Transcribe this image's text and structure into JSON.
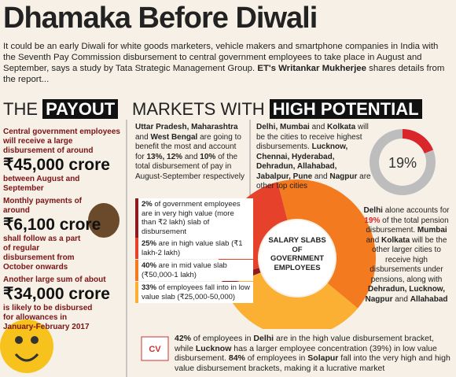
{
  "title": "Dhamaka Before Diwali",
  "intro": {
    "runs": [
      "It could be an early Diwali for white goods marketers, vehicle makers and smartphone companies in India with the Seventh Pay Commission disbursement to central government employees to take place in August and September, says a study by Tata Strategic Management Group. ",
      {
        "b": "ET's Writankar Mukherjee"
      },
      " shares details from the report..."
    ]
  },
  "headers": {
    "payout_pre": "THE",
    "payout": "PAYOUT",
    "markets_pre": "MARKETS WITH",
    "markets": "HIGH POTENTIAL"
  },
  "payout": [
    {
      "lead": "Central government employees will receive a large disbursement of around",
      "amount": "₹45,000 crore",
      "tail": "between August and September"
    },
    {
      "lead": "Monthly payments of around",
      "amount": "₹6,100 crore",
      "tail": "shall follow as a part of regular disbursement from October onwards"
    },
    {
      "lead": "Another large sum of about",
      "amount": "₹34,000 crore",
      "tail": "is likely to be disbursed for allowances in January-February 2017"
    }
  ],
  "markets": {
    "states": {
      "runs": [
        {
          "b": "Uttar Pradesh, Maharashtra"
        },
        " and ",
        {
          "b": "West Bengal"
        },
        " are going to benefit the most and account for ",
        {
          "b": "13%, 12%"
        },
        " and ",
        {
          "b": "10%"
        },
        " of the total disbursement of pay in August-September respectively"
      ]
    },
    "cities": {
      "runs": [
        {
          "b": "Delhi, Mumbai"
        },
        " and ",
        {
          "b": "Kolkata"
        },
        " will be the cities to receive highest disbursements. ",
        {
          "b": "Lucknow, Chennai, Hyderabad, Dehradun, Allahabad, Jabalpur, Pune"
        },
        " and ",
        {
          "b": "Nagpur"
        },
        " are other top cities"
      ]
    },
    "pension": {
      "value": 19,
      "label": "19%",
      "colors": [
        "#d9262b",
        "#bdbdbd"
      ],
      "runs": [
        {
          "b": "Delhi"
        },
        " alone accounts for ",
        {
          "r": "19%"
        },
        " of the total pension disbursement. ",
        {
          "b": "Mumbai"
        },
        " and ",
        {
          "b": "Kolkata"
        },
        " will be the other larger cities to receive high disbursements under pensions, along with ",
        {
          "b": "Dehradun, Lucknow, Nagpur"
        },
        " and ",
        {
          "b": "Allahabad"
        }
      ]
    },
    "slabs": {
      "label": "SALARY SLABS OF GOVERNMENT EMPLOYEES",
      "values": [
        2,
        25,
        40,
        33
      ],
      "colors": [
        "#8e1b1e",
        "#e5412b",
        "#f47a20",
        "#fbb034"
      ],
      "legend": [
        {
          "runs": [
            {
              "b": "2%"
            },
            " of government employees are in very high value (more than ₹2 lakh) slab of disbursement"
          ]
        },
        {
          "runs": [
            {
              "b": "25%"
            },
            " are in high value slab (₹1 lakh-2 lakh)"
          ]
        },
        {
          "runs": [
            {
              "b": "40%"
            },
            " are in mid value slab (₹50,000-1 lakh)"
          ]
        },
        {
          "runs": [
            {
              "b": "33%"
            },
            " of employees fall into in low value slab (₹25,000-50,000)"
          ]
        }
      ]
    },
    "bottom": {
      "runs": [
        {
          "b": "42%"
        },
        " of employees in ",
        {
          "b": "Delhi"
        },
        " are in the high value disbursement bracket, while ",
        {
          "b": "Lucknow"
        },
        " has a larger employee concentration (39%) in low value disbursement. ",
        {
          "b": "84%"
        },
        " of employees in ",
        {
          "b": "Solapur"
        },
        " fall into the very high and high value disbursement brackets, making it a lucrative market"
      ]
    },
    "cv": "CV"
  }
}
